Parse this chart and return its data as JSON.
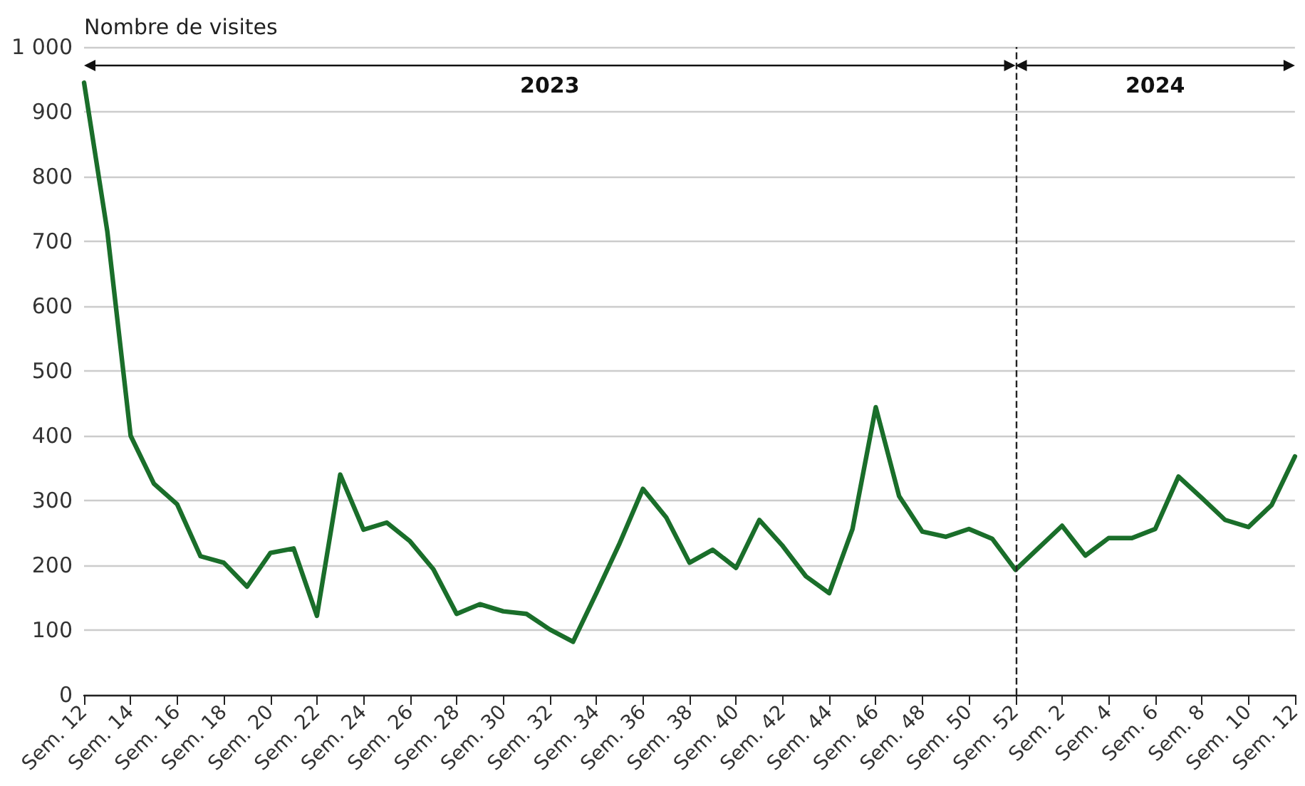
{
  "chart_data": {
    "type": "line",
    "ylabel": "Nombre de visites",
    "categories": [
      "Sem. 12",
      null,
      "Sem. 14",
      null,
      "Sem. 16",
      null,
      "Sem. 18",
      null,
      "Sem. 20",
      null,
      "Sem. 22",
      null,
      "Sem. 24",
      null,
      "Sem. 26",
      null,
      "Sem. 28",
      null,
      "Sem. 30",
      null,
      "Sem. 32",
      null,
      "Sem. 34",
      null,
      "Sem. 36",
      null,
      "Sem. 38",
      null,
      "Sem. 40",
      null,
      "Sem. 42",
      null,
      "Sem. 44",
      null,
      "Sem. 46",
      null,
      "Sem. 48",
      null,
      "Sem. 50",
      null,
      "Sem. 52",
      null,
      "Sem. 2",
      null,
      "Sem. 4",
      null,
      "Sem. 6",
      null,
      "Sem. 8",
      null,
      "Sem. 10",
      null,
      "Sem. 12"
    ],
    "series": [
      {
        "color": "#1a6e2a",
        "values": [
          945,
          715,
          400,
          326,
          294,
          214,
          204,
          167,
          219,
          226,
          122,
          340,
          255,
          266,
          237,
          194,
          125,
          140,
          129,
          125,
          101,
          82,
          157,
          234,
          318,
          274,
          204,
          224,
          196,
          270,
          230,
          183,
          157,
          256,
          444,
          307,
          252,
          244,
          256,
          241,
          193,
          227,
          261,
          215,
          242,
          242,
          256,
          337,
          304,
          270,
          259,
          293,
          368
        ]
      }
    ],
    "ylim": [
      0,
      1000
    ],
    "yticks": [
      0,
      100,
      200,
      300,
      400,
      500,
      600,
      700,
      800,
      900,
      {
        "value": 1000,
        "label": "1 000"
      }
    ],
    "ref_lines": [
      {
        "axis": "x",
        "value": "Sem. 52",
        "line_style": "dashed",
        "color": "#222222"
      }
    ],
    "annotations": [
      "2023",
      "2024"
    ],
    "grid": "y",
    "marker": "none",
    "line_style": "solid"
  }
}
